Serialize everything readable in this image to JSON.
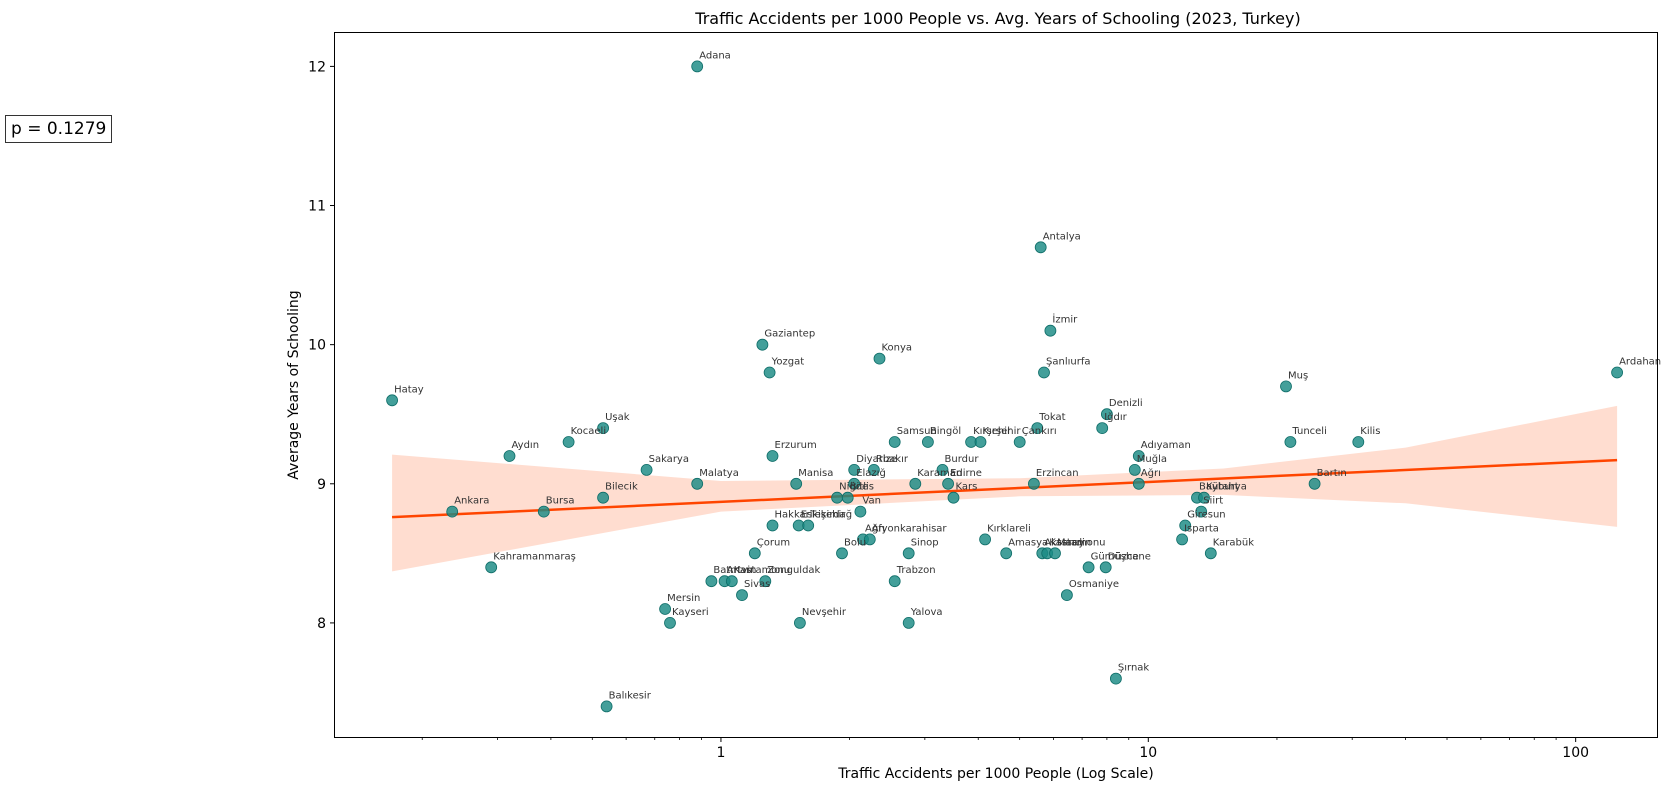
{
  "chart_data": {
    "type": "scatter",
    "title": "Traffic Accidents per 1000 People vs. Avg. Years of Schooling (2023, Turkey)",
    "xlabel": "Traffic Accidents per 1000 People (Log Scale)",
    "ylabel": "Average Years of Schooling",
    "xscale": "log",
    "xlim": [
      0.125,
      155
    ],
    "ylim": [
      7.18,
      12.24
    ],
    "x_ticks": [
      {
        "value": 1,
        "label": "1"
      },
      {
        "value": 10,
        "label": "10"
      },
      {
        "value": 100,
        "label": "100"
      }
    ],
    "y_ticks": [
      {
        "value": 8,
        "label": "8"
      },
      {
        "value": 9,
        "label": "9"
      },
      {
        "value": 10,
        "label": "10"
      },
      {
        "value": 11,
        "label": "11"
      },
      {
        "value": 12,
        "label": "12"
      }
    ],
    "grid": false,
    "annotation": "p = 0.1279",
    "colors": {
      "points": "#1a8a84",
      "regression": "#ff4500",
      "ci_band": "#ffc7b0"
    },
    "regression": {
      "x0": 0.17,
      "y0": 8.76,
      "x1": 125,
      "y1": 9.17
    },
    "ci_band": {
      "x": [
        0.17,
        1,
        5,
        15,
        40,
        125
      ],
      "lower": [
        8.37,
        8.8,
        8.91,
        8.92,
        8.86,
        8.69
      ],
      "upper": [
        9.21,
        9.02,
        9.04,
        9.11,
        9.26,
        9.56
      ]
    },
    "points": [
      {
        "label": "Adana",
        "x": 0.88,
        "y": 12.0
      },
      {
        "label": "Antalya",
        "x": 5.6,
        "y": 10.7
      },
      {
        "label": "İzmir",
        "x": 5.9,
        "y": 10.1
      },
      {
        "label": "Gaziantep",
        "x": 1.25,
        "y": 10.0
      },
      {
        "label": "Konya",
        "x": 2.35,
        "y": 9.9
      },
      {
        "label": "Yozgat",
        "x": 1.3,
        "y": 9.8
      },
      {
        "label": "Şanlıurfa",
        "x": 5.7,
        "y": 9.8
      },
      {
        "label": "Ardahan",
        "x": 125,
        "y": 9.8
      },
      {
        "label": "Muş",
        "x": 21,
        "y": 9.7
      },
      {
        "label": "Hatay",
        "x": 0.17,
        "y": 9.6
      },
      {
        "label": "Denizli",
        "x": 8.0,
        "y": 9.5
      },
      {
        "label": "Uşak",
        "x": 0.53,
        "y": 9.4
      },
      {
        "label": "Tokat",
        "x": 5.5,
        "y": 9.4
      },
      {
        "label": "Iğdır",
        "x": 7.8,
        "y": 9.4
      },
      {
        "label": "Kocaeli",
        "x": 0.44,
        "y": 9.3
      },
      {
        "label": "Samsun",
        "x": 2.55,
        "y": 9.3
      },
      {
        "label": "Bingöl",
        "x": 3.05,
        "y": 9.3
      },
      {
        "label": "Kırşehir",
        "x": 3.85,
        "y": 9.3
      },
      {
        "label": "Kırşehir",
        "x": 4.05,
        "y": 9.3
      },
      {
        "label": "Çankırı",
        "x": 5.0,
        "y": 9.3
      },
      {
        "label": "Tunceli",
        "x": 21.5,
        "y": 9.3
      },
      {
        "label": "Kilis",
        "x": 31,
        "y": 9.3
      },
      {
        "label": "Aydın",
        "x": 0.32,
        "y": 9.2
      },
      {
        "label": "Erzurum",
        "x": 1.32,
        "y": 9.2
      },
      {
        "label": "Adıyaman",
        "x": 9.5,
        "y": 9.2
      },
      {
        "label": "Sakarya",
        "x": 0.67,
        "y": 9.1
      },
      {
        "label": "Diyarbakır",
        "x": 2.05,
        "y": 9.1
      },
      {
        "label": "Rize",
        "x": 2.28,
        "y": 9.1
      },
      {
        "label": "Burdur",
        "x": 3.3,
        "y": 9.1
      },
      {
        "label": "Muğla",
        "x": 9.3,
        "y": 9.1
      },
      {
        "label": "Malatya",
        "x": 0.88,
        "y": 9.0
      },
      {
        "label": "Manisa",
        "x": 1.5,
        "y": 9.0
      },
      {
        "label": "Elazığ",
        "x": 2.05,
        "y": 9.0
      },
      {
        "label": "Karaman",
        "x": 2.85,
        "y": 9.0
      },
      {
        "label": "Edirne",
        "x": 3.4,
        "y": 9.0
      },
      {
        "label": "Erzincan",
        "x": 5.4,
        "y": 9.0
      },
      {
        "label": "Ağrı",
        "x": 9.5,
        "y": 9.0
      },
      {
        "label": "Bartın",
        "x": 24.5,
        "y": 9.0
      },
      {
        "label": "Bilecik",
        "x": 0.53,
        "y": 8.9
      },
      {
        "label": "Niğde",
        "x": 1.87,
        "y": 8.9
      },
      {
        "label": "Bitlis",
        "x": 1.98,
        "y": 8.9
      },
      {
        "label": "Kars",
        "x": 3.5,
        "y": 8.9
      },
      {
        "label": "Bayburt",
        "x": 13.0,
        "y": 8.9
      },
      {
        "label": "Kütahya",
        "x": 13.5,
        "y": 8.9
      },
      {
        "label": "Ankara",
        "x": 0.235,
        "y": 8.8
      },
      {
        "label": "Bursa",
        "x": 0.385,
        "y": 8.8
      },
      {
        "label": "Van",
        "x": 2.12,
        "y": 8.8
      },
      {
        "label": "Siirt",
        "x": 13.3,
        "y": 8.8
      },
      {
        "label": "Hakkari",
        "x": 1.32,
        "y": 8.7
      },
      {
        "label": "Eskişehir",
        "x": 1.52,
        "y": 8.7
      },
      {
        "label": "Tekirdağ",
        "x": 1.6,
        "y": 8.7
      },
      {
        "label": "Giresun",
        "x": 12.2,
        "y": 8.7
      },
      {
        "label": "Ağrı",
        "x": 2.15,
        "y": 8.6
      },
      {
        "label": "Afyonkarahisar",
        "x": 2.23,
        "y": 8.6
      },
      {
        "label": "Kırklareli",
        "x": 4.15,
        "y": 8.6
      },
      {
        "label": "Isparta",
        "x": 12.0,
        "y": 8.6
      },
      {
        "label": "Çorum",
        "x": 1.2,
        "y": 8.5
      },
      {
        "label": "Bolu",
        "x": 1.92,
        "y": 8.5
      },
      {
        "label": "Sinop",
        "x": 2.75,
        "y": 8.5
      },
      {
        "label": "Amasya",
        "x": 4.65,
        "y": 8.5
      },
      {
        "label": "Aksaray",
        "x": 5.65,
        "y": 8.5
      },
      {
        "label": "Kastamonu",
        "x": 5.8,
        "y": 8.5
      },
      {
        "label": "Mardin",
        "x": 6.05,
        "y": 8.5
      },
      {
        "label": "Karabük",
        "x": 14.0,
        "y": 8.5
      },
      {
        "label": "Kahramanmaraş",
        "x": 0.29,
        "y": 8.4
      },
      {
        "label": "Gümüşhane",
        "x": 7.25,
        "y": 8.4
      },
      {
        "label": "Düzce",
        "x": 7.95,
        "y": 8.4
      },
      {
        "label": "Batman",
        "x": 0.95,
        "y": 8.3
      },
      {
        "label": "Artvin",
        "x": 1.02,
        "y": 8.3
      },
      {
        "label": "Kastamonu",
        "x": 1.06,
        "y": 8.3
      },
      {
        "label": "Zonguldak",
        "x": 1.27,
        "y": 8.3
      },
      {
        "label": "Trabzon",
        "x": 2.55,
        "y": 8.3
      },
      {
        "label": "Sivas",
        "x": 1.12,
        "y": 8.2
      },
      {
        "label": "Osmaniye",
        "x": 6.45,
        "y": 8.2
      },
      {
        "label": "Mersin",
        "x": 0.74,
        "y": 8.1
      },
      {
        "label": "Kayseri",
        "x": 0.76,
        "y": 8.0
      },
      {
        "label": "Nevşehir",
        "x": 1.53,
        "y": 8.0
      },
      {
        "label": "Yalova",
        "x": 2.75,
        "y": 8.0
      },
      {
        "label": "Şırnak",
        "x": 8.4,
        "y": 7.6
      },
      {
        "label": "Balıkesir",
        "x": 0.54,
        "y": 7.4
      }
    ]
  }
}
